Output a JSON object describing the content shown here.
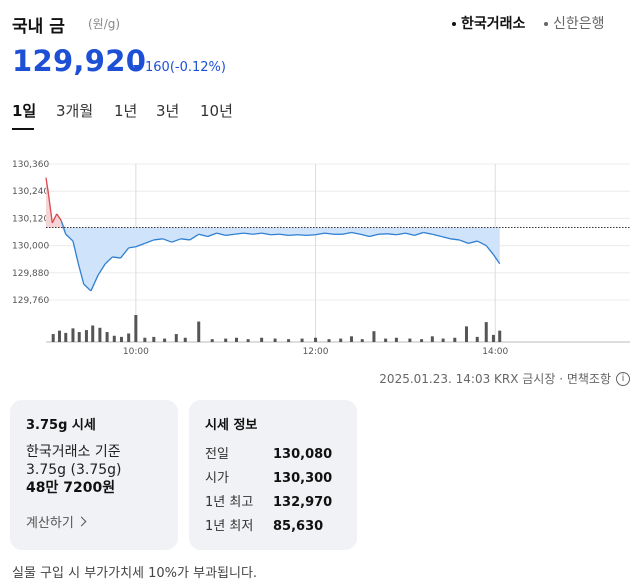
{
  "header": {
    "title": "국내 금",
    "unit": "(원/g)",
    "sources": [
      {
        "label": "한국거래소",
        "active": true
      },
      {
        "label": "신한은행",
        "active": false
      }
    ]
  },
  "price": {
    "value": "129,920",
    "change": "160",
    "change_pct": "(-0.12%)",
    "direction": "down",
    "color": "#1e50d6"
  },
  "tabs": [
    {
      "label": "1일",
      "active": true
    },
    {
      "label": "3개월",
      "active": false
    },
    {
      "label": "1년",
      "active": false
    },
    {
      "label": "3년",
      "active": false
    },
    {
      "label": "10년",
      "active": false
    }
  ],
  "chart_data": {
    "type": "line",
    "y_tick_labels": [
      "130,360",
      "130,240",
      "130,120",
      "130,000",
      "129,880",
      "129,760"
    ],
    "y_ticks": [
      130360,
      130240,
      130120,
      130000,
      129880,
      129760
    ],
    "ylim": [
      129760,
      130360
    ],
    "x_tick_labels": [
      "10:00",
      "12:00",
      "14:00"
    ],
    "x_ticks_hours": [
      10,
      12,
      14
    ],
    "xlim_hours": [
      9,
      15.5
    ],
    "baseline": 130080,
    "baseline_style": "dotted",
    "up_color": "#d9484f",
    "down_color": "#2f7fd1",
    "fill_color": "#cfe3fb",
    "series": [
      {
        "t": 9.0,
        "v": 130300
      },
      {
        "t": 9.03,
        "v": 130220
      },
      {
        "t": 9.07,
        "v": 130100
      },
      {
        "t": 9.12,
        "v": 130140
      },
      {
        "t": 9.17,
        "v": 130110
      },
      {
        "t": 9.22,
        "v": 130050
      },
      {
        "t": 9.3,
        "v": 130020
      },
      {
        "t": 9.36,
        "v": 129920
      },
      {
        "t": 9.42,
        "v": 129830
      },
      {
        "t": 9.5,
        "v": 129800
      },
      {
        "t": 9.58,
        "v": 129870
      },
      {
        "t": 9.66,
        "v": 129920
      },
      {
        "t": 9.74,
        "v": 129950
      },
      {
        "t": 9.83,
        "v": 129945
      },
      {
        "t": 9.92,
        "v": 129990
      },
      {
        "t": 10.0,
        "v": 129995
      },
      {
        "t": 10.1,
        "v": 130010
      },
      {
        "t": 10.2,
        "v": 130025
      },
      {
        "t": 10.3,
        "v": 130030
      },
      {
        "t": 10.4,
        "v": 130015
      },
      {
        "t": 10.5,
        "v": 130030
      },
      {
        "t": 10.6,
        "v": 130025
      },
      {
        "t": 10.7,
        "v": 130050
      },
      {
        "t": 10.8,
        "v": 130040
      },
      {
        "t": 10.9,
        "v": 130055
      },
      {
        "t": 11.0,
        "v": 130045
      },
      {
        "t": 11.1,
        "v": 130050
      },
      {
        "t": 11.2,
        "v": 130055
      },
      {
        "t": 11.3,
        "v": 130050
      },
      {
        "t": 11.4,
        "v": 130055
      },
      {
        "t": 11.5,
        "v": 130048
      },
      {
        "t": 11.6,
        "v": 130050
      },
      {
        "t": 11.7,
        "v": 130045
      },
      {
        "t": 11.8,
        "v": 130048
      },
      {
        "t": 11.9,
        "v": 130045
      },
      {
        "t": 12.0,
        "v": 130048
      },
      {
        "t": 12.1,
        "v": 130055
      },
      {
        "t": 12.2,
        "v": 130050
      },
      {
        "t": 12.3,
        "v": 130050
      },
      {
        "t": 12.4,
        "v": 130058
      },
      {
        "t": 12.5,
        "v": 130050
      },
      {
        "t": 12.6,
        "v": 130040
      },
      {
        "t": 12.7,
        "v": 130050
      },
      {
        "t": 12.8,
        "v": 130052
      },
      {
        "t": 12.9,
        "v": 130048
      },
      {
        "t": 13.0,
        "v": 130055
      },
      {
        "t": 13.1,
        "v": 130045
      },
      {
        "t": 13.2,
        "v": 130058
      },
      {
        "t": 13.3,
        "v": 130050
      },
      {
        "t": 13.4,
        "v": 130040
      },
      {
        "t": 13.5,
        "v": 130030
      },
      {
        "t": 13.6,
        "v": 130025
      },
      {
        "t": 13.7,
        "v": 130010
      },
      {
        "t": 13.8,
        "v": 130020
      },
      {
        "t": 13.9,
        "v": 130000
      },
      {
        "t": 13.98,
        "v": 129960
      },
      {
        "t": 14.05,
        "v": 129920
      }
    ],
    "volume": [
      {
        "t": 9.08,
        "v": 28
      },
      {
        "t": 9.15,
        "v": 40
      },
      {
        "t": 9.22,
        "v": 32
      },
      {
        "t": 9.3,
        "v": 48
      },
      {
        "t": 9.37,
        "v": 35
      },
      {
        "t": 9.45,
        "v": 42
      },
      {
        "t": 9.52,
        "v": 58
      },
      {
        "t": 9.6,
        "v": 50
      },
      {
        "t": 9.68,
        "v": 35
      },
      {
        "t": 9.76,
        "v": 22
      },
      {
        "t": 9.84,
        "v": 18
      },
      {
        "t": 9.92,
        "v": 30
      },
      {
        "t": 10.0,
        "v": 95
      },
      {
        "t": 10.1,
        "v": 15
      },
      {
        "t": 10.2,
        "v": 18
      },
      {
        "t": 10.32,
        "v": 12
      },
      {
        "t": 10.45,
        "v": 28
      },
      {
        "t": 10.55,
        "v": 15
      },
      {
        "t": 10.7,
        "v": 72
      },
      {
        "t": 10.85,
        "v": 10
      },
      {
        "t": 11.0,
        "v": 12
      },
      {
        "t": 11.12,
        "v": 15
      },
      {
        "t": 11.25,
        "v": 10
      },
      {
        "t": 11.4,
        "v": 15
      },
      {
        "t": 11.55,
        "v": 12
      },
      {
        "t": 11.7,
        "v": 10
      },
      {
        "t": 11.85,
        "v": 12
      },
      {
        "t": 12.0,
        "v": 15
      },
      {
        "t": 12.15,
        "v": 10
      },
      {
        "t": 12.28,
        "v": 12
      },
      {
        "t": 12.4,
        "v": 20
      },
      {
        "t": 12.52,
        "v": 10
      },
      {
        "t": 12.65,
        "v": 38
      },
      {
        "t": 12.78,
        "v": 12
      },
      {
        "t": 12.9,
        "v": 15
      },
      {
        "t": 13.05,
        "v": 12
      },
      {
        "t": 13.18,
        "v": 10
      },
      {
        "t": 13.3,
        "v": 20
      },
      {
        "t": 13.42,
        "v": 12
      },
      {
        "t": 13.55,
        "v": 15
      },
      {
        "t": 13.68,
        "v": 55
      },
      {
        "t": 13.8,
        "v": 18
      },
      {
        "t": 13.9,
        "v": 70
      },
      {
        "t": 13.98,
        "v": 25
      },
      {
        "t": 14.05,
        "v": 40
      }
    ]
  },
  "timestamp": {
    "text": "2025.01.23. 14:03 KRX 금시장 · 면책조항",
    "info_icon": "i"
  },
  "card1": {
    "title": "3.75g 시세",
    "line1": "한국거래소 기준",
    "line2": "3.75g (3.75g)",
    "amount": "48만 7200원",
    "link": "계산하기"
  },
  "card2": {
    "title": "시세 정보",
    "rows": [
      {
        "label": "전일",
        "value": "130,080"
      },
      {
        "label": "시가",
        "value": "130,300"
      },
      {
        "label": "1년 최고",
        "value": "132,970"
      },
      {
        "label": "1년 최저",
        "value": "85,630"
      }
    ]
  },
  "footer": "실물 구입 시 부가가치세 10%가 부과됩니다."
}
